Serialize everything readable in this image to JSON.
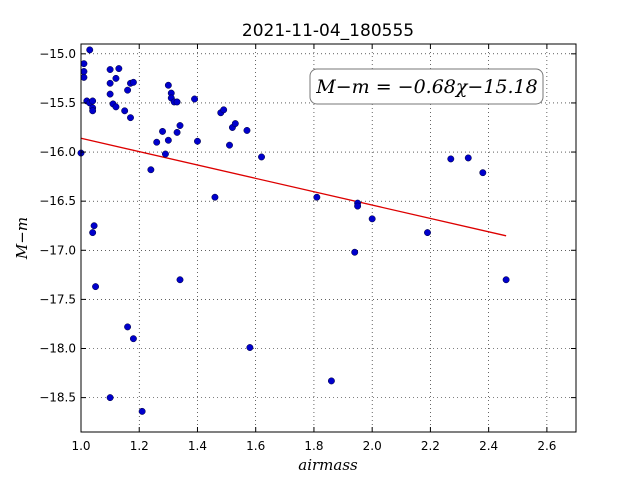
{
  "chart_data": {
    "type": "scatter",
    "title": "2021-11-04_180555",
    "xlabel": "airmass",
    "ylabel": "M−m",
    "xlim": [
      1.0,
      2.7
    ],
    "ylim": [
      -18.85,
      -14.9
    ],
    "y_inverted": true,
    "grid": true,
    "xticks": [
      1.0,
      1.2,
      1.4,
      1.6,
      1.8,
      2.0,
      2.2,
      2.4,
      2.6
    ],
    "yticks": [
      -15.0,
      -15.5,
      -16.0,
      -16.5,
      -17.0,
      -17.5,
      -18.0,
      -18.5
    ],
    "xtick_labels": [
      "1.0",
      "1.2",
      "1.4",
      "1.6",
      "1.8",
      "2.0",
      "2.2",
      "2.4",
      "2.6"
    ],
    "ytick_labels": [
      "−15.0",
      "−15.5",
      "−16.0",
      "−16.5",
      "−17.0",
      "−17.5",
      "−18.0",
      "−18.5"
    ],
    "annotation": "M−m = −0.68χ−15.18",
    "fit": {
      "slope": -0.68,
      "intercept": -15.18,
      "x_range": [
        1.0,
        2.46
      ],
      "color": "#dd0000"
    },
    "point_color": "#0000cc",
    "points": [
      [
        1.0,
        -16.01
      ],
      [
        1.01,
        -15.1
      ],
      [
        1.01,
        -15.18
      ],
      [
        1.01,
        -15.24
      ],
      [
        1.02,
        -15.48
      ],
      [
        1.03,
        -14.96
      ],
      [
        1.03,
        -15.5
      ],
      [
        1.04,
        -15.48
      ],
      [
        1.04,
        -15.55
      ],
      [
        1.04,
        -15.58
      ],
      [
        1.04,
        -16.82
      ],
      [
        1.045,
        -16.75
      ],
      [
        1.05,
        -17.37
      ],
      [
        1.1,
        -15.16
      ],
      [
        1.1,
        -15.3
      ],
      [
        1.1,
        -15.41
      ],
      [
        1.1,
        -18.5
      ],
      [
        1.11,
        -15.51
      ],
      [
        1.12,
        -15.25
      ],
      [
        1.12,
        -15.54
      ],
      [
        1.13,
        -15.15
      ],
      [
        1.15,
        -15.58
      ],
      [
        1.16,
        -15.37
      ],
      [
        1.16,
        -17.78
      ],
      [
        1.17,
        -15.3
      ],
      [
        1.17,
        -15.65
      ],
      [
        1.18,
        -15.29
      ],
      [
        1.18,
        -17.9
      ],
      [
        1.21,
        -18.64
      ],
      [
        1.24,
        -16.18
      ],
      [
        1.26,
        -15.9
      ],
      [
        1.28,
        -15.79
      ],
      [
        1.29,
        -16.02
      ],
      [
        1.3,
        -15.32
      ],
      [
        1.3,
        -15.88
      ],
      [
        1.31,
        -15.4
      ],
      [
        1.31,
        -15.45
      ],
      [
        1.32,
        -15.49
      ],
      [
        1.33,
        -15.49
      ],
      [
        1.33,
        -15.8
      ],
      [
        1.34,
        -15.73
      ],
      [
        1.34,
        -17.3
      ],
      [
        1.39,
        -15.46
      ],
      [
        1.4,
        -15.89
      ],
      [
        1.46,
        -16.46
      ],
      [
        1.48,
        -15.6
      ],
      [
        1.49,
        -15.57
      ],
      [
        1.51,
        -15.93
      ],
      [
        1.52,
        -15.75
      ],
      [
        1.53,
        -15.71
      ],
      [
        1.57,
        -15.78
      ],
      [
        1.58,
        -17.99
      ],
      [
        1.62,
        -16.05
      ],
      [
        1.81,
        -16.46
      ],
      [
        1.86,
        -18.33
      ],
      [
        1.94,
        -17.02
      ],
      [
        1.95,
        -16.52
      ],
      [
        1.95,
        -16.55
      ],
      [
        2.0,
        -16.68
      ],
      [
        2.19,
        -16.82
      ],
      [
        2.27,
        -16.07
      ],
      [
        2.33,
        -16.06
      ],
      [
        2.38,
        -16.21
      ],
      [
        2.46,
        -17.3
      ]
    ]
  }
}
